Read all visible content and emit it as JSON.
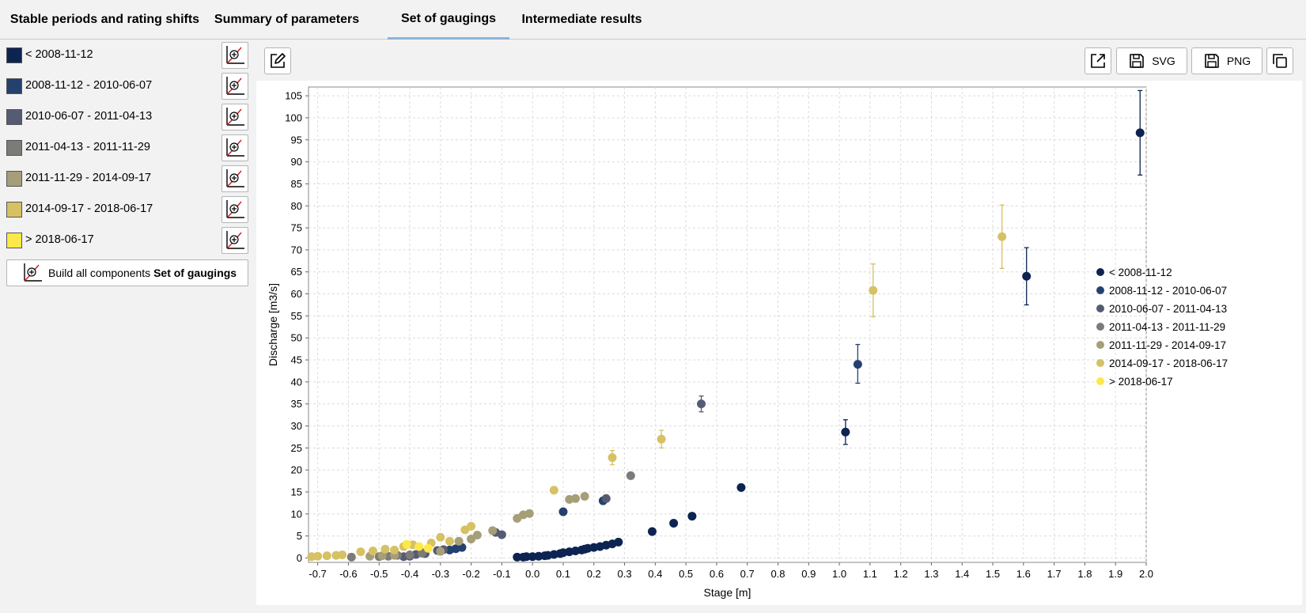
{
  "tabs": [
    {
      "label": "Stable periods and rating shifts",
      "active": false
    },
    {
      "label": "Summary of parameters",
      "active": false
    },
    {
      "label": "Set of gaugings",
      "active": true
    },
    {
      "label": "Intermediate results",
      "active": false
    }
  ],
  "periods": [
    {
      "label": "< 2008-11-12",
      "color": "#0d2452"
    },
    {
      "label": "2008-11-12 - 2010-06-07",
      "color": "#24406f"
    },
    {
      "label": "2010-06-07 - 2011-04-13",
      "color": "#555b72"
    },
    {
      "label": "2011-04-13 - 2011-11-29",
      "color": "#7c7b78"
    },
    {
      "label": "2011-11-29 - 2014-09-17",
      "color": "#a69e78"
    },
    {
      "label": "2014-09-17 - 2018-06-17",
      "color": "#d6c164"
    },
    {
      "label": "> 2018-06-17",
      "color": "#fde84a"
    }
  ],
  "sidebar": {
    "build_button_icon": "build-component-icon",
    "build_all_prefix": "Build all components",
    "build_all_bold": "Set of gaugings"
  },
  "toolbar": {
    "edit_icon": "edit-icon",
    "export_icon": "external-link-icon",
    "svg_label": "SVG",
    "png_label": "PNG",
    "copy_icon": "copy-icon"
  },
  "chart_data": {
    "type": "scatter",
    "xlabel": "Stage  [m]",
    "ylabel": "Discharge [m3/s]",
    "xlim": [
      -0.73,
      2.0
    ],
    "ylim": [
      -1,
      107
    ],
    "xticks": [
      -0.7,
      -0.6,
      -0.5,
      -0.4,
      -0.3,
      -0.2,
      -0.1,
      0.0,
      0.1,
      0.2,
      0.3,
      0.4,
      0.5,
      0.6,
      0.7,
      0.8,
      0.9,
      1.0,
      1.1,
      1.2,
      1.3,
      1.4,
      1.5,
      1.6,
      1.7,
      1.8,
      1.9,
      2.0
    ],
    "yticks": [
      0,
      5,
      10,
      15,
      20,
      25,
      30,
      35,
      40,
      45,
      50,
      55,
      60,
      65,
      70,
      75,
      80,
      85,
      90,
      95,
      100,
      105
    ],
    "grid": true,
    "legend_position": "right",
    "series": [
      {
        "name": "< 2008-11-12",
        "color": "#0d2452",
        "points": [
          [
            -0.05,
            0.2
          ],
          [
            -0.03,
            0.2
          ],
          [
            -0.02,
            0.3
          ],
          [
            0.0,
            0.3
          ],
          [
            0.02,
            0.4
          ],
          [
            0.04,
            0.5
          ],
          [
            0.05,
            0.6
          ],
          [
            0.07,
            0.8
          ],
          [
            0.09,
            1.0
          ],
          [
            0.1,
            1.2
          ],
          [
            0.12,
            1.4
          ],
          [
            0.14,
            1.6
          ],
          [
            0.16,
            1.8
          ],
          [
            0.17,
            2.0
          ],
          [
            0.18,
            2.2
          ],
          [
            0.2,
            2.4
          ],
          [
            0.22,
            2.6
          ],
          [
            0.24,
            2.9
          ],
          [
            0.26,
            3.2
          ],
          [
            0.28,
            3.6
          ],
          [
            0.39,
            6.0
          ],
          [
            0.46,
            7.9
          ],
          [
            0.52,
            9.5
          ],
          [
            0.68,
            16.0
          ],
          [
            1.02,
            28.6
          ],
          [
            1.61,
            64.0
          ],
          [
            1.98,
            96.6
          ]
        ],
        "errors": [
          [
            1.02,
            25.8,
            31.4
          ],
          [
            1.61,
            57.5,
            70.5
          ],
          [
            1.98,
            87.0,
            106.2
          ]
        ]
      },
      {
        "name": "2008-11-12 - 2010-06-07",
        "color": "#24406f",
        "points": [
          [
            -0.27,
            1.8
          ],
          [
            -0.25,
            2.1
          ],
          [
            -0.23,
            2.4
          ],
          [
            0.1,
            10.5
          ],
          [
            0.23,
            13.0
          ],
          [
            1.06,
            44.0
          ]
        ],
        "errors": [
          [
            1.06,
            39.7,
            48.5
          ]
        ]
      },
      {
        "name": "2010-06-07 - 2011-04-13",
        "color": "#555b72",
        "points": [
          [
            -0.42,
            0.3
          ],
          [
            -0.4,
            0.4
          ],
          [
            -0.38,
            0.8
          ],
          [
            -0.36,
            1.2
          ],
          [
            -0.35,
            1.0
          ],
          [
            -0.31,
            1.7
          ],
          [
            -0.29,
            1.9
          ],
          [
            -0.12,
            5.8
          ],
          [
            -0.1,
            5.3
          ],
          [
            0.24,
            13.5
          ],
          [
            0.55,
            35.0
          ]
        ],
        "errors": [
          [
            0.55,
            33.2,
            36.8
          ]
        ]
      },
      {
        "name": "2011-04-13 - 2011-11-29",
        "color": "#7c7b78",
        "points": [
          [
            -0.59,
            0.2
          ],
          [
            -0.5,
            0.3
          ],
          [
            -0.47,
            0.4
          ],
          [
            -0.44,
            0.6
          ],
          [
            -0.4,
            0.7
          ],
          [
            -0.36,
            1.1
          ],
          [
            0.32,
            18.7
          ]
        ],
        "errors": []
      },
      {
        "name": "2011-11-29 - 2014-09-17",
        "color": "#a69e78",
        "points": [
          [
            -0.53,
            0.4
          ],
          [
            -0.49,
            0.5
          ],
          [
            -0.45,
            0.6
          ],
          [
            -0.3,
            1.5
          ],
          [
            -0.24,
            3.8
          ],
          [
            -0.2,
            4.3
          ],
          [
            -0.18,
            5.2
          ],
          [
            -0.13,
            6.2
          ],
          [
            -0.05,
            9.0
          ],
          [
            -0.03,
            9.8
          ],
          [
            -0.01,
            10.1
          ],
          [
            0.12,
            13.3
          ],
          [
            0.14,
            13.5
          ],
          [
            0.17,
            14.0
          ]
        ],
        "errors": []
      },
      {
        "name": "2014-09-17 - 2018-06-17",
        "color": "#d6c164",
        "points": [
          [
            -0.72,
            0.3
          ],
          [
            -0.7,
            0.4
          ],
          [
            -0.67,
            0.5
          ],
          [
            -0.64,
            0.6
          ],
          [
            -0.62,
            0.7
          ],
          [
            -0.56,
            1.4
          ],
          [
            -0.52,
            1.6
          ],
          [
            -0.48,
            2.0
          ],
          [
            -0.45,
            1.8
          ],
          [
            -0.42,
            2.6
          ],
          [
            -0.39,
            3.0
          ],
          [
            -0.33,
            3.4
          ],
          [
            -0.3,
            4.7
          ],
          [
            -0.27,
            3.8
          ],
          [
            -0.22,
            6.4
          ],
          [
            -0.2,
            7.2
          ],
          [
            0.07,
            15.4
          ],
          [
            0.26,
            22.8
          ],
          [
            0.42,
            27.0
          ],
          [
            1.11,
            60.8
          ],
          [
            1.53,
            73.0
          ]
        ],
        "errors": [
          [
            0.26,
            21.2,
            24.4
          ],
          [
            0.42,
            25.0,
            29.0
          ],
          [
            1.11,
            54.8,
            66.8
          ],
          [
            1.53,
            65.8,
            80.2
          ]
        ]
      },
      {
        "name": "> 2018-06-17",
        "color": "#fde84a",
        "points": [
          [
            -0.41,
            3.1
          ],
          [
            -0.37,
            2.6
          ],
          [
            -0.34,
            2.2
          ]
        ],
        "errors": []
      }
    ]
  }
}
